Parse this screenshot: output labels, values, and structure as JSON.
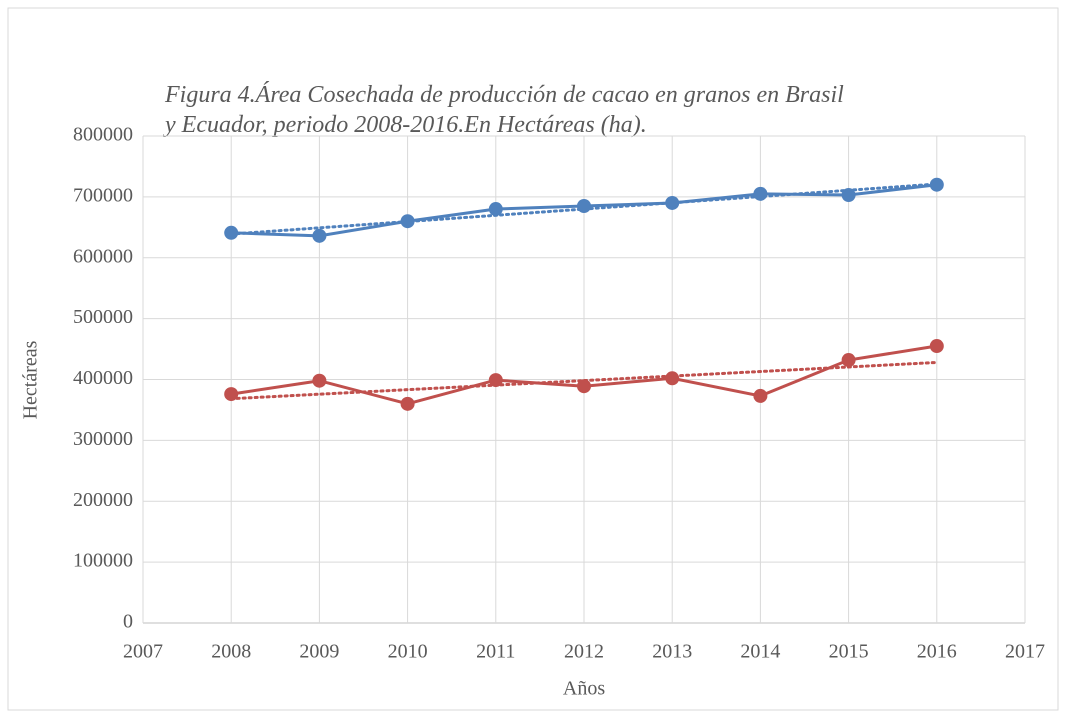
{
  "chart_data": {
    "type": "line",
    "title": [
      "Figura 4.Área Cosechada de producción de cacao en granos en Brasil",
      "y Ecuador, periodo 2008-2016.En Hectáreas (ha)."
    ],
    "x_label": "Años",
    "y_label": "Hectáreas",
    "x": [
      2008,
      2009,
      2010,
      2011,
      2012,
      2013,
      2014,
      2015,
      2016
    ],
    "series": [
      {
        "color": "#4f81bd",
        "values": [
          641000,
          636000,
          660000,
          680000,
          685000,
          690000,
          705000,
          703000,
          720000
        ],
        "trendline": true
      },
      {
        "color": "#c0504d",
        "values": [
          376000,
          398000,
          360000,
          399000,
          389000,
          402000,
          373000,
          432000,
          455000
        ],
        "trendline": true
      }
    ],
    "xlim": [
      2007,
      2017
    ],
    "xticks": [
      2007,
      2008,
      2009,
      2010,
      2011,
      2012,
      2013,
      2014,
      2015,
      2016,
      2017
    ],
    "ylim": [
      0,
      800000
    ],
    "yticks": [
      0,
      100000,
      200000,
      300000,
      400000,
      500000,
      600000,
      700000,
      800000
    ],
    "grid": true
  }
}
